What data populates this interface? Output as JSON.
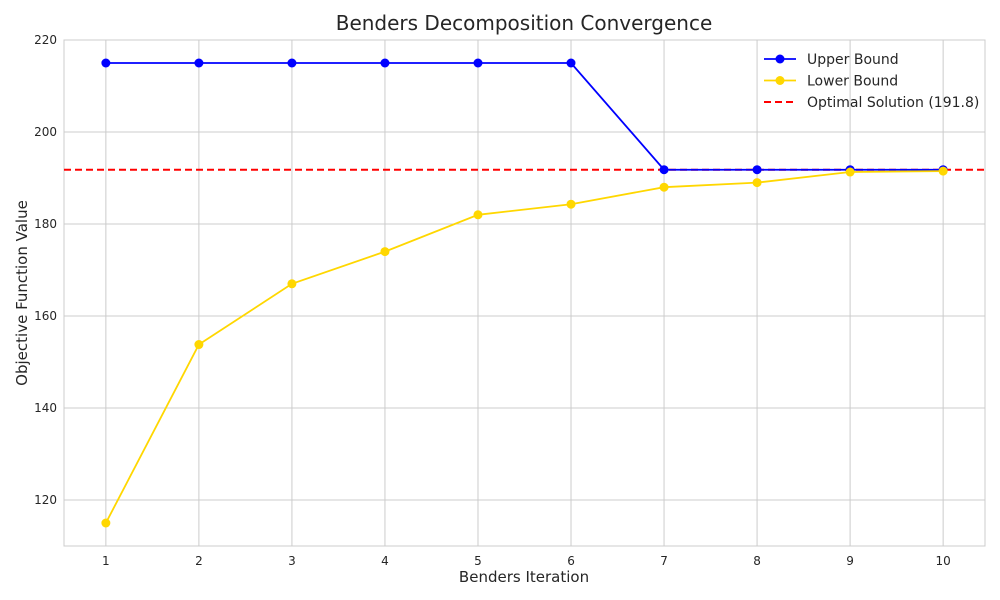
{
  "chart_data": {
    "type": "line",
    "title": "Benders Decomposition Convergence",
    "xlabel": "Benders Iteration",
    "ylabel": "Objective Function Value",
    "x": [
      1,
      2,
      3,
      4,
      5,
      6,
      7,
      8,
      9,
      10
    ],
    "xlim": [
      0.55,
      10.45
    ],
    "ylim": [
      110,
      220
    ],
    "xticks": [
      1,
      2,
      3,
      4,
      5,
      6,
      7,
      8,
      9,
      10
    ],
    "yticks": [
      120,
      140,
      160,
      180,
      200,
      220
    ],
    "grid": true,
    "legend_position": "top-right",
    "series": [
      {
        "name": "Upper Bound",
        "color": "#0000ff",
        "style": "solid-markers",
        "values": [
          215,
          215,
          215,
          215,
          215,
          215,
          191.8,
          191.8,
          191.8,
          191.8
        ]
      },
      {
        "name": "Lower Bound",
        "color": "#ffd700",
        "style": "solid-markers",
        "values": [
          115,
          153.8,
          167,
          174,
          182,
          184.3,
          188,
          189,
          191.3,
          191.5
        ]
      }
    ],
    "reference_lines": [
      {
        "name": "Optimal Solution (191.8)",
        "color": "#ff0000",
        "style": "dashed",
        "y": 191.8
      }
    ]
  }
}
